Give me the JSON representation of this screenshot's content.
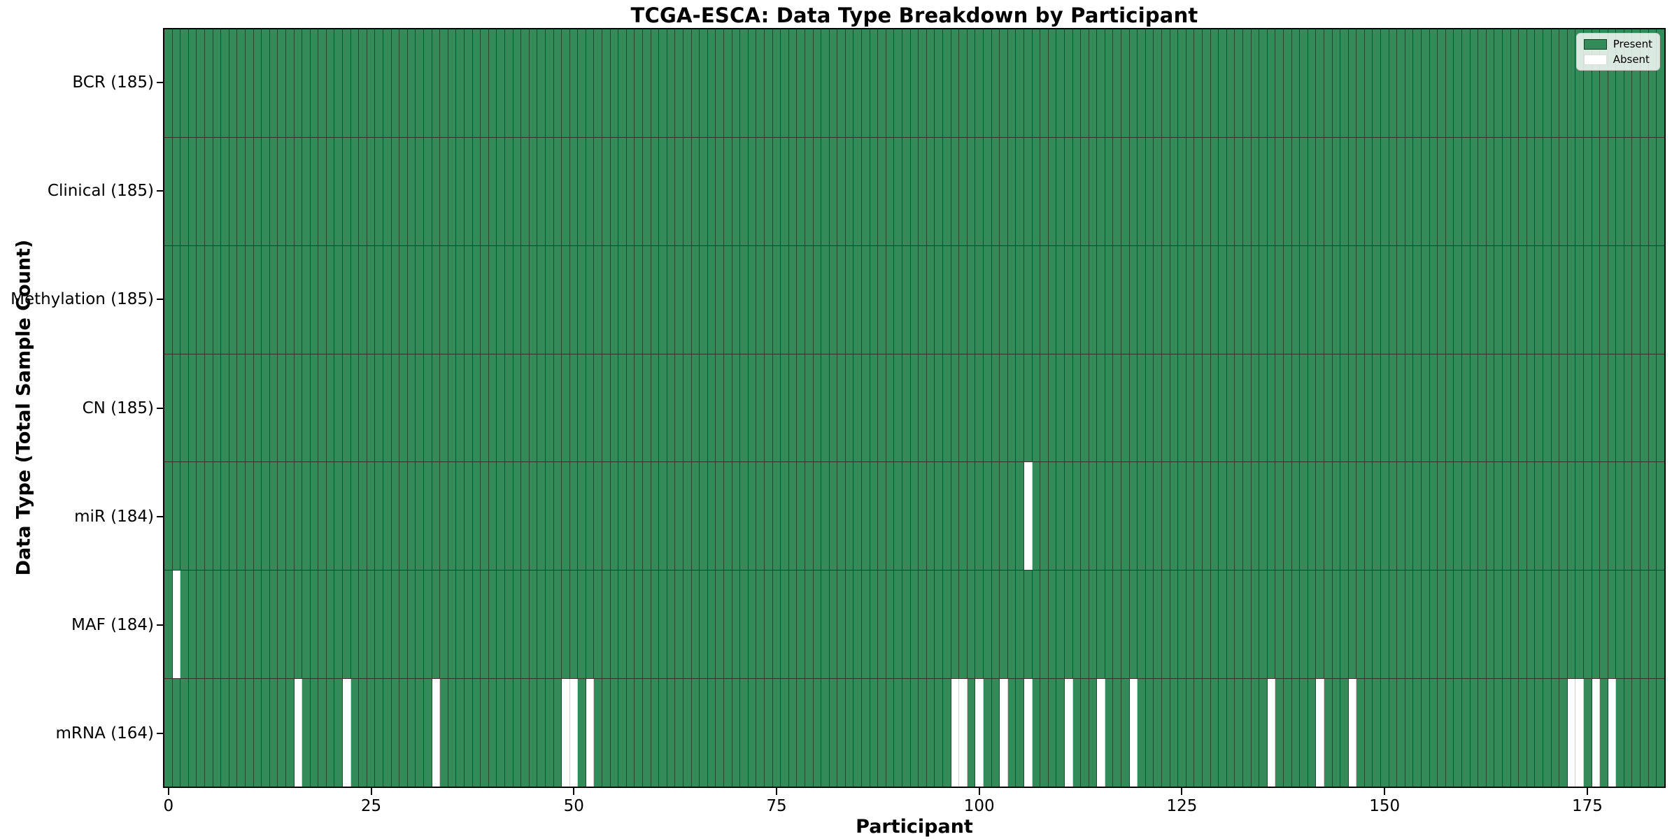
{
  "chart_data": {
    "type": "heatmap",
    "title": "TCGA-ESCA: Data Type Breakdown by Participant",
    "xlabel": "Participant",
    "ylabel": "Data Type (Total Sample Count)",
    "n_participants": 185,
    "x_range": [
      0,
      184
    ],
    "x_tick_values": [
      0,
      25,
      50,
      75,
      100,
      125,
      150,
      175
    ],
    "grid": "cell-edges-on",
    "legend_position": "upper-right-inside",
    "legend": [
      {
        "label": "Present",
        "color": "#348a58"
      },
      {
        "label": "Absent",
        "color": "#ffffff"
      }
    ],
    "colors": {
      "present": "#348a58",
      "absent": "#ffffff",
      "cell_edge": "rgba(0,0,0,0.45)",
      "row_edge": "rgba(0,0,0,0.8)",
      "spine": "#000000"
    },
    "rows": [
      {
        "name": "BCR",
        "label": "BCR (185)",
        "total": 185,
        "absent_participants": []
      },
      {
        "name": "Clinical",
        "label": "Clinical (185)",
        "total": 185,
        "absent_participants": []
      },
      {
        "name": "Methylation",
        "label": "Methylation (185)",
        "total": 185,
        "absent_participants": []
      },
      {
        "name": "CN",
        "label": "CN (185)",
        "total": 185,
        "absent_participants": []
      },
      {
        "name": "miR",
        "label": "miR (184)",
        "total": 184,
        "absent_participants": [
          106
        ]
      },
      {
        "name": "MAF",
        "label": "MAF (184)",
        "total": 184,
        "absent_participants": [
          1
        ]
      },
      {
        "name": "mRNA",
        "label": "mRNA (164)",
        "total": 164,
        "absent_participants": [
          16,
          22,
          33,
          49,
          50,
          52,
          97,
          98,
          100,
          103,
          106,
          111,
          115,
          119,
          136,
          142,
          146,
          173,
          174,
          176,
          178
        ]
      }
    ]
  }
}
